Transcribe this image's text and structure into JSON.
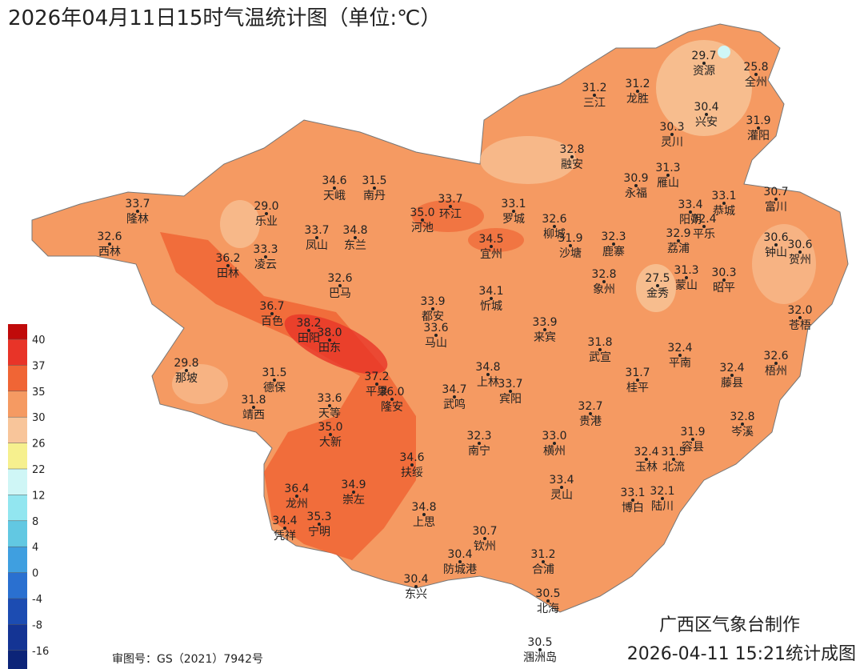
{
  "title": "2026年04月11日15时气温统计图（单位:℃）",
  "legend": {
    "ticks": [
      40,
      37,
      35,
      30,
      26,
      22,
      12,
      8,
      4,
      0,
      -4,
      -8,
      -16
    ],
    "colors": [
      "#c00a0a",
      "#e83428",
      "#f06535",
      "#f59a62",
      "#f8c59a",
      "#f6f08e",
      "#cff6f6",
      "#92e6f0",
      "#62c8e2",
      "#3f9fe0",
      "#2a70d0",
      "#1c4cb2",
      "#143494",
      "#0c2478"
    ]
  },
  "stations": [
    {
      "value": "29.7",
      "name": "资源"
    },
    {
      "value": "25.8",
      "name": "全州"
    },
    {
      "value": "31.2",
      "name": "三江"
    },
    {
      "value": "31.2",
      "name": "龙胜"
    },
    {
      "value": "30.4",
      "name": "兴安"
    },
    {
      "value": "31.9",
      "name": "灌阳"
    },
    {
      "value": "30.3",
      "name": "灵川"
    },
    {
      "value": "32.8",
      "name": "融安"
    },
    {
      "value": "30.9",
      "name": "永福"
    },
    {
      "value": "31.3",
      "name": "雁山"
    },
    {
      "value": "33.4",
      "name": "阳朔"
    },
    {
      "value": "33.1",
      "name": "恭城"
    },
    {
      "value": "30.7",
      "name": "富川"
    },
    {
      "value": "32.4",
      "name": "平乐"
    },
    {
      "value": "34.6",
      "name": "天峨"
    },
    {
      "value": "31.5",
      "name": "南丹"
    },
    {
      "value": "33.7",
      "name": "隆林"
    },
    {
      "value": "29.0",
      "name": "乐业"
    },
    {
      "value": "33.7",
      "name": "环江"
    },
    {
      "value": "35.0",
      "name": "河池"
    },
    {
      "value": "33.1",
      "name": "罗城"
    },
    {
      "value": "32.6",
      "name": "柳城"
    },
    {
      "value": "32.6",
      "name": "西林"
    },
    {
      "value": "33.7",
      "name": "凤山"
    },
    {
      "value": "34.8",
      "name": "东兰"
    },
    {
      "value": "33.3",
      "name": "凌云"
    },
    {
      "value": "34.5",
      "name": "宜州"
    },
    {
      "value": "31.9",
      "name": "沙塘"
    },
    {
      "value": "32.3",
      "name": "鹿寨"
    },
    {
      "value": "32.9",
      "name": "荔浦"
    },
    {
      "value": "30.6",
      "name": "钟山"
    },
    {
      "value": "30.6",
      "name": "贺州"
    },
    {
      "value": "36.2",
      "name": "田林"
    },
    {
      "value": "27.5",
      "name": "金秀"
    },
    {
      "value": "31.3",
      "name": "蒙山"
    },
    {
      "value": "30.3",
      "name": "昭平"
    },
    {
      "value": "32.6",
      "name": "巴马"
    },
    {
      "value": "34.1",
      "name": "忻城"
    },
    {
      "value": "32.8",
      "name": "象州"
    },
    {
      "value": "36.7",
      "name": "百色"
    },
    {
      "value": "33.9",
      "name": "都安"
    },
    {
      "value": "38.2",
      "name": "田阳"
    },
    {
      "value": "38.0",
      "name": "田东"
    },
    {
      "value": "33.6",
      "name": "马山"
    },
    {
      "value": "33.9",
      "name": "来宾"
    },
    {
      "value": "31.8",
      "name": "武宣"
    },
    {
      "value": "32.0",
      "name": "苍梧"
    },
    {
      "value": "32.4",
      "name": "平南"
    },
    {
      "value": "29.8",
      "name": "那坡"
    },
    {
      "value": "32.6",
      "name": "梧州"
    },
    {
      "value": "31.5",
      "name": "德保"
    },
    {
      "value": "34.8",
      "name": "上林"
    },
    {
      "value": "33.7",
      "name": "宾阳"
    },
    {
      "value": "31.7",
      "name": "桂平"
    },
    {
      "value": "32.4",
      "name": "藤县"
    },
    {
      "value": "37.2",
      "name": "平果"
    },
    {
      "value": "36.0",
      "name": "隆安"
    },
    {
      "value": "34.7",
      "name": "武鸣"
    },
    {
      "value": "31.8",
      "name": "靖西"
    },
    {
      "value": "33.6",
      "name": "天等"
    },
    {
      "value": "32.7",
      "name": "贵港"
    },
    {
      "value": "32.8",
      "name": "岑溪"
    },
    {
      "value": "35.0",
      "name": "大新"
    },
    {
      "value": "32.3",
      "name": "南宁"
    },
    {
      "value": "33.0",
      "name": "横州"
    },
    {
      "value": "31.9",
      "name": "容县"
    },
    {
      "value": "32.4",
      "name": "玉林"
    },
    {
      "value": "31.5",
      "name": "北流"
    },
    {
      "value": "34.6",
      "name": "扶绥"
    },
    {
      "value": "36.4",
      "name": "龙州"
    },
    {
      "value": "34.9",
      "name": "崇左"
    },
    {
      "value": "33.4",
      "name": "灵山"
    },
    {
      "value": "33.1",
      "name": "博白"
    },
    {
      "value": "32.1",
      "name": "陆川"
    },
    {
      "value": "35.3",
      "name": "宁明"
    },
    {
      "value": "34.8",
      "name": "上思"
    },
    {
      "value": "34.4",
      "name": "凭祥"
    },
    {
      "value": "30.7",
      "name": "钦州"
    },
    {
      "value": "30.4",
      "name": "防城港"
    },
    {
      "value": "31.2",
      "name": "合浦"
    },
    {
      "value": "30.4",
      "name": "东兴"
    },
    {
      "value": "30.5",
      "name": "北海"
    },
    {
      "value": "30.5",
      "name": "涠洲岛"
    }
  ],
  "footer": {
    "approval": "审图号：GS（2021）7942号",
    "producer": "广西区气象台制作",
    "timestamp": "2026-04-11 15:21统计成图"
  }
}
